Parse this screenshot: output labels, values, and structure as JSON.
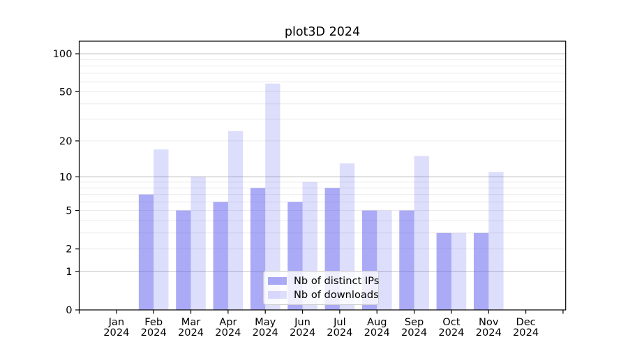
{
  "title": "plot3D 2024",
  "chart_data": {
    "type": "bar",
    "title": "plot3D 2024",
    "x_year": "2024",
    "categories": [
      "Jan",
      "Feb",
      "Mar",
      "Apr",
      "May",
      "Jun",
      "Jul",
      "Aug",
      "Sep",
      "Oct",
      "Nov",
      "Dec"
    ],
    "series": [
      {
        "name": "Nb of distinct IPs",
        "color": "#5555ee",
        "opacity": 0.5,
        "values": [
          0,
          7,
          5,
          6,
          8,
          6,
          8,
          5,
          5,
          3,
          3,
          0
        ]
      },
      {
        "name": "Nb of downloads",
        "color": "#5555ee",
        "opacity": 0.2,
        "values": [
          0,
          17,
          10,
          24,
          58,
          9,
          13,
          5,
          15,
          3,
          11,
          0
        ]
      }
    ],
    "y_scale": "log10(value+1)",
    "ylim": [
      0,
      126
    ],
    "y_ticks": [
      100,
      50,
      20,
      10,
      5,
      2,
      1,
      0
    ],
    "y_major_gridlines": [
      1,
      10,
      100
    ],
    "y_minor_gridlines": [
      2,
      3,
      4,
      5,
      6,
      7,
      8,
      9,
      20,
      30,
      40,
      50,
      60,
      70,
      80,
      90
    ],
    "grid": true,
    "legend_position": "bottom-center"
  },
  "colors": {
    "bar_base": "#5555ee",
    "grid_major": "#c2c2c2",
    "grid_minor": "#ebebeb",
    "axis": "#000000",
    "legend_border": "#cccccc"
  }
}
